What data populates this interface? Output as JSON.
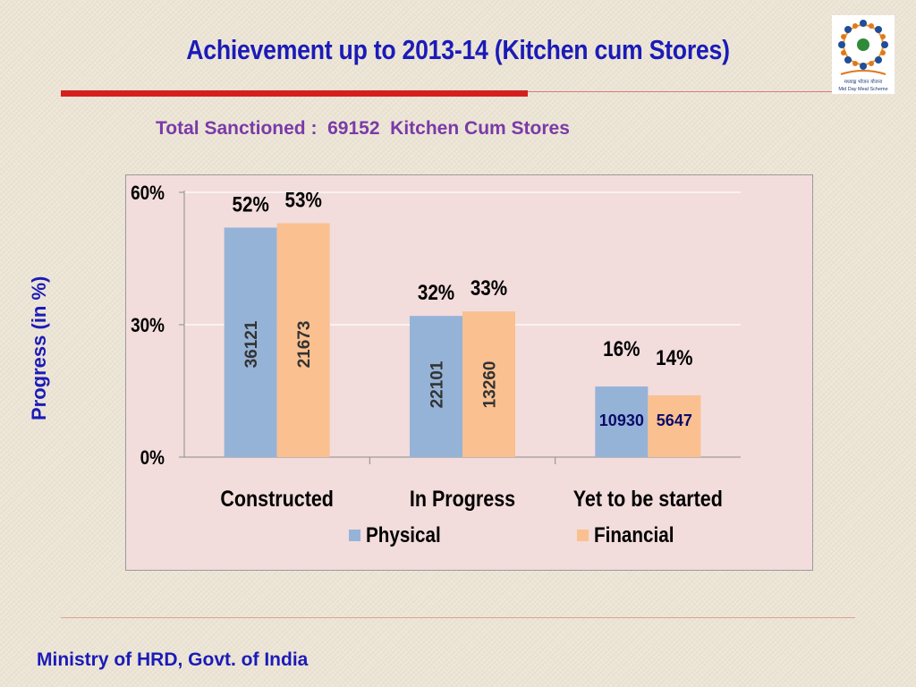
{
  "slide": {
    "title": "Achievement up to 2013-14 (Kitchen cum Stores)",
    "subtitle": "Total Sanctioned :  69152  Kitchen Cum Stores",
    "side_label": "Progress (in %)",
    "footer": "Ministry of HRD, Govt. of India",
    "logo_text_1": "मध्याह्न भोजन योजना",
    "logo_text_2": "Mid Day Meal Scheme"
  },
  "colors": {
    "title": "#1b1bb8",
    "subtitle": "#7a3aa8",
    "accent_rule": "#d51f1f",
    "plot_bg": "#f2dcdc",
    "physical": "#95b3d7",
    "financial": "#fac090"
  },
  "chart_data": {
    "type": "bar",
    "categories": [
      "Constructed",
      "In Progress",
      "Yet to be started"
    ],
    "series": [
      {
        "name": "Physical",
        "values": [
          52,
          32,
          16
        ],
        "labels": [
          "52%",
          "32%",
          "16%"
        ],
        "counts": [
          "36121",
          "22101",
          "10930"
        ]
      },
      {
        "name": "Financial",
        "values": [
          53,
          33,
          14
        ],
        "labels": [
          "53%",
          "33%",
          "14%"
        ],
        "counts": [
          "21673",
          "13260",
          "5647"
        ]
      }
    ],
    "ylim": [
      0,
      60
    ],
    "yticks": [
      0,
      30,
      60
    ],
    "ytick_labels": [
      "0%",
      "30%",
      "60%"
    ],
    "grid": true,
    "legend": "bottom"
  }
}
